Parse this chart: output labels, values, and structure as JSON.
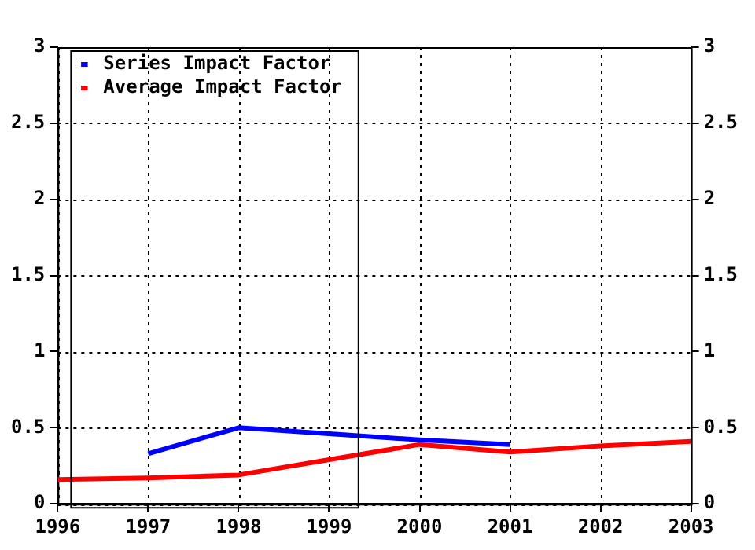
{
  "chart_data": {
    "type": "line",
    "x": [
      1996,
      1997,
      1998,
      1999,
      2000,
      2001,
      2002,
      2003
    ],
    "series": [
      {
        "name": "Series Impact Factor",
        "color": "#0000ff",
        "values": [
          null,
          0.33,
          0.5,
          0.46,
          0.42,
          0.39,
          null,
          null
        ]
      },
      {
        "name": "Average Impact Factor",
        "color": "#ff0000",
        "values": [
          0.16,
          0.17,
          0.19,
          0.29,
          0.39,
          0.34,
          0.38,
          0.41
        ]
      }
    ],
    "xlim": [
      1996,
      2003
    ],
    "xticks": [
      1996,
      1997,
      1998,
      1999,
      2000,
      2001,
      2002,
      2003
    ],
    "ylim": [
      0,
      3
    ],
    "yticks": [
      0,
      0.5,
      1,
      1.5,
      2,
      2.5,
      3
    ],
    "y2lim": [
      0,
      3
    ],
    "y2ticks": [
      0,
      0.5,
      1,
      1.5,
      2,
      2.5,
      3
    ],
    "grid": true,
    "legend": "top left",
    "marker": "none",
    "line_style": "solid"
  }
}
